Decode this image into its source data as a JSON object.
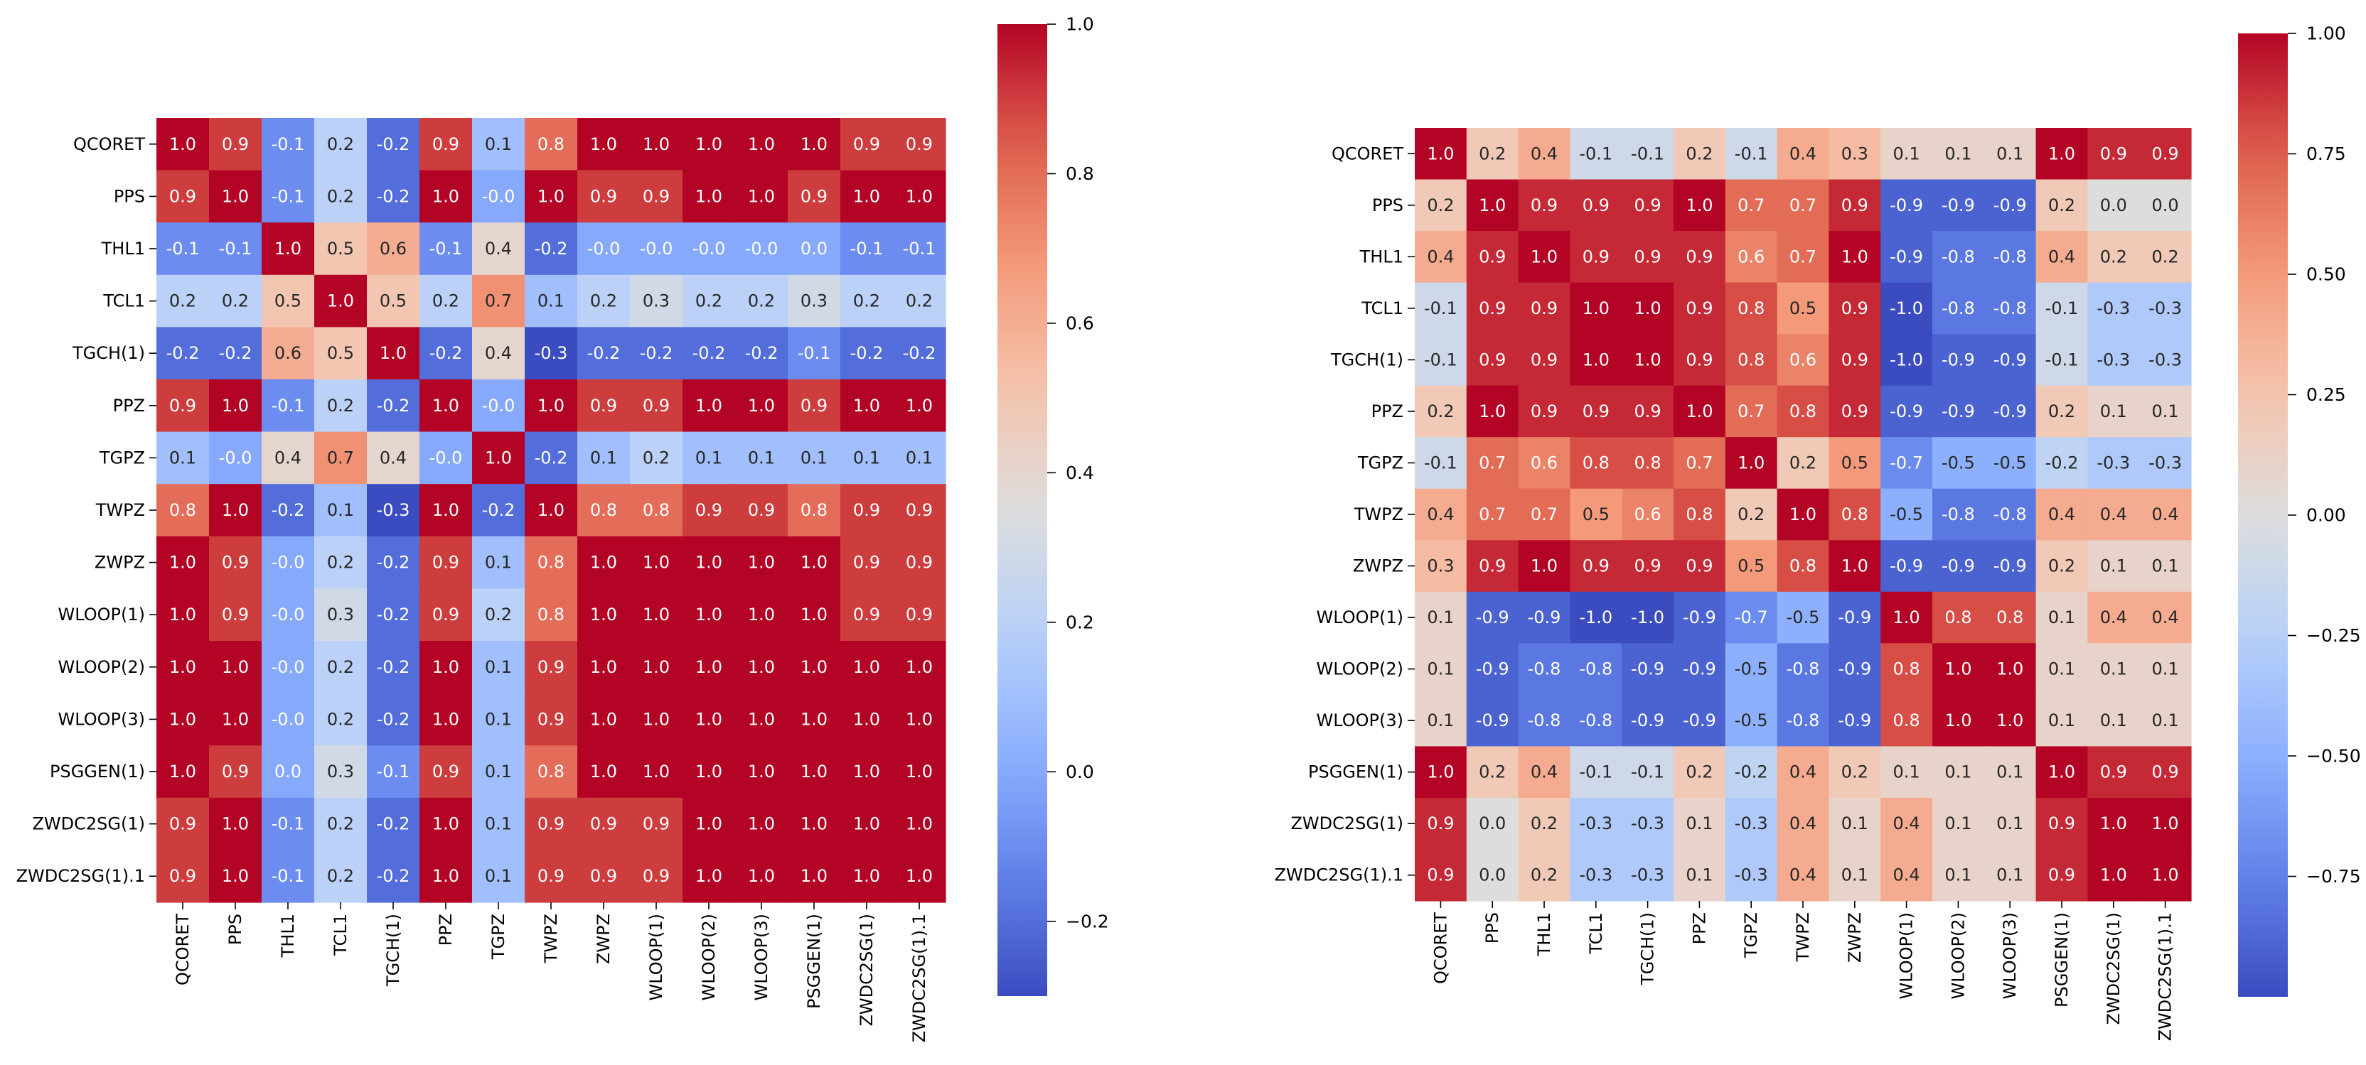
{
  "chart_data": [
    {
      "type": "heatmap",
      "title": "",
      "xlabel": "",
      "ylabel": "",
      "colormap": "coolwarm",
      "vmin": -0.3,
      "vmax": 1.0,
      "value_format": "1 decimal",
      "labels": [
        "QCORET",
        "PPS",
        "THL1",
        "TCL1",
        "TGCH(1)",
        "PPZ",
        "TGPZ",
        "TWPZ",
        "ZWPZ",
        "WLOOP(1)",
        "WLOOP(2)",
        "WLOOP(3)",
        "PSGGEN(1)",
        "ZWDC2SG(1)",
        "ZWDC2SG(1).1"
      ],
      "matrix": [
        [
          1.0,
          0.9,
          -0.1,
          0.2,
          -0.2,
          0.9,
          0.1,
          0.8,
          1.0,
          1.0,
          1.0,
          1.0,
          1.0,
          0.9,
          0.9
        ],
        [
          0.9,
          1.0,
          -0.1,
          0.2,
          -0.2,
          1.0,
          -0.0,
          1.0,
          0.9,
          0.9,
          1.0,
          1.0,
          0.9,
          1.0,
          1.0
        ],
        [
          -0.1,
          -0.1,
          1.0,
          0.5,
          0.6,
          -0.1,
          0.4,
          -0.2,
          -0.0,
          -0.0,
          -0.0,
          -0.0,
          0.0,
          -0.1,
          -0.1
        ],
        [
          0.2,
          0.2,
          0.5,
          1.0,
          0.5,
          0.2,
          0.7,
          0.1,
          0.2,
          0.3,
          0.2,
          0.2,
          0.3,
          0.2,
          0.2
        ],
        [
          -0.2,
          -0.2,
          0.6,
          0.5,
          1.0,
          -0.2,
          0.4,
          -0.3,
          -0.2,
          -0.2,
          -0.2,
          -0.2,
          -0.1,
          -0.2,
          -0.2
        ],
        [
          0.9,
          1.0,
          -0.1,
          0.2,
          -0.2,
          1.0,
          -0.0,
          1.0,
          0.9,
          0.9,
          1.0,
          1.0,
          0.9,
          1.0,
          1.0
        ],
        [
          0.1,
          -0.0,
          0.4,
          0.7,
          0.4,
          -0.0,
          1.0,
          -0.2,
          0.1,
          0.2,
          0.1,
          0.1,
          0.1,
          0.1,
          0.1
        ],
        [
          0.8,
          1.0,
          -0.2,
          0.1,
          -0.3,
          1.0,
          -0.2,
          1.0,
          0.8,
          0.8,
          0.9,
          0.9,
          0.8,
          0.9,
          0.9
        ],
        [
          1.0,
          0.9,
          -0.0,
          0.2,
          -0.2,
          0.9,
          0.1,
          0.8,
          1.0,
          1.0,
          1.0,
          1.0,
          1.0,
          0.9,
          0.9
        ],
        [
          1.0,
          0.9,
          -0.0,
          0.3,
          -0.2,
          0.9,
          0.2,
          0.8,
          1.0,
          1.0,
          1.0,
          1.0,
          1.0,
          0.9,
          0.9
        ],
        [
          1.0,
          1.0,
          -0.0,
          0.2,
          -0.2,
          1.0,
          0.1,
          0.9,
          1.0,
          1.0,
          1.0,
          1.0,
          1.0,
          1.0,
          1.0
        ],
        [
          1.0,
          1.0,
          -0.0,
          0.2,
          -0.2,
          1.0,
          0.1,
          0.9,
          1.0,
          1.0,
          1.0,
          1.0,
          1.0,
          1.0,
          1.0
        ],
        [
          1.0,
          0.9,
          0.0,
          0.3,
          -0.1,
          0.9,
          0.1,
          0.8,
          1.0,
          1.0,
          1.0,
          1.0,
          1.0,
          1.0,
          1.0
        ],
        [
          0.9,
          1.0,
          -0.1,
          0.2,
          -0.2,
          1.0,
          0.1,
          0.9,
          0.9,
          0.9,
          1.0,
          1.0,
          1.0,
          1.0,
          1.0
        ],
        [
          0.9,
          1.0,
          -0.1,
          0.2,
          -0.2,
          1.0,
          0.1,
          0.9,
          0.9,
          0.9,
          1.0,
          1.0,
          1.0,
          1.0,
          1.0
        ]
      ],
      "colorbar": {
        "ticks": [
          1.0,
          0.8,
          0.6,
          0.4,
          0.2,
          0.0,
          -0.2
        ],
        "tick_labels": [
          "1.0",
          "0.8",
          "0.6",
          "0.4",
          "0.2",
          "0.0",
          "−0.2"
        ]
      }
    },
    {
      "type": "heatmap",
      "title": "",
      "xlabel": "",
      "ylabel": "",
      "colormap": "coolwarm",
      "vmin": -1.0,
      "vmax": 1.0,
      "value_format": "1 decimal",
      "labels": [
        "QCORET",
        "PPS",
        "THL1",
        "TCL1",
        "TGCH(1)",
        "PPZ",
        "TGPZ",
        "TWPZ",
        "ZWPZ",
        "WLOOP(1)",
        "WLOOP(2)",
        "WLOOP(3)",
        "PSGGEN(1)",
        "ZWDC2SG(1)",
        "ZWDC2SG(1).1"
      ],
      "matrix": [
        [
          1.0,
          0.2,
          0.4,
          -0.1,
          -0.1,
          0.2,
          -0.1,
          0.4,
          0.3,
          0.1,
          0.1,
          0.1,
          1.0,
          0.9,
          0.9
        ],
        [
          0.2,
          1.0,
          0.9,
          0.9,
          0.9,
          1.0,
          0.7,
          0.7,
          0.9,
          -0.9,
          -0.9,
          -0.9,
          0.2,
          0.0,
          0.0
        ],
        [
          0.4,
          0.9,
          1.0,
          0.9,
          0.9,
          0.9,
          0.6,
          0.7,
          1.0,
          -0.9,
          -0.8,
          -0.8,
          0.4,
          0.2,
          0.2
        ],
        [
          -0.1,
          0.9,
          0.9,
          1.0,
          1.0,
          0.9,
          0.8,
          0.5,
          0.9,
          -1.0,
          -0.8,
          -0.8,
          -0.1,
          -0.3,
          -0.3
        ],
        [
          -0.1,
          0.9,
          0.9,
          1.0,
          1.0,
          0.9,
          0.8,
          0.6,
          0.9,
          -1.0,
          -0.9,
          -0.9,
          -0.1,
          -0.3,
          -0.3
        ],
        [
          0.2,
          1.0,
          0.9,
          0.9,
          0.9,
          1.0,
          0.7,
          0.8,
          0.9,
          -0.9,
          -0.9,
          -0.9,
          0.2,
          0.1,
          0.1
        ],
        [
          -0.1,
          0.7,
          0.6,
          0.8,
          0.8,
          0.7,
          1.0,
          0.2,
          0.5,
          -0.7,
          -0.5,
          -0.5,
          -0.2,
          -0.3,
          -0.3
        ],
        [
          0.4,
          0.7,
          0.7,
          0.5,
          0.6,
          0.8,
          0.2,
          1.0,
          0.8,
          -0.5,
          -0.8,
          -0.8,
          0.4,
          0.4,
          0.4
        ],
        [
          0.3,
          0.9,
          1.0,
          0.9,
          0.9,
          0.9,
          0.5,
          0.8,
          1.0,
          -0.9,
          -0.9,
          -0.9,
          0.2,
          0.1,
          0.1
        ],
        [
          0.1,
          -0.9,
          -0.9,
          -1.0,
          -1.0,
          -0.9,
          -0.7,
          -0.5,
          -0.9,
          1.0,
          0.8,
          0.8,
          0.1,
          0.4,
          0.4
        ],
        [
          0.1,
          -0.9,
          -0.8,
          -0.8,
          -0.9,
          -0.9,
          -0.5,
          -0.8,
          -0.9,
          0.8,
          1.0,
          1.0,
          0.1,
          0.1,
          0.1
        ],
        [
          0.1,
          -0.9,
          -0.8,
          -0.8,
          -0.9,
          -0.9,
          -0.5,
          -0.8,
          -0.9,
          0.8,
          1.0,
          1.0,
          0.1,
          0.1,
          0.1
        ],
        [
          1.0,
          0.2,
          0.4,
          -0.1,
          -0.1,
          0.2,
          -0.2,
          0.4,
          0.2,
          0.1,
          0.1,
          0.1,
          1.0,
          0.9,
          0.9
        ],
        [
          0.9,
          0.0,
          0.2,
          -0.3,
          -0.3,
          0.1,
          -0.3,
          0.4,
          0.1,
          0.4,
          0.1,
          0.1,
          0.9,
          1.0,
          1.0
        ],
        [
          0.9,
          0.0,
          0.2,
          -0.3,
          -0.3,
          0.1,
          -0.3,
          0.4,
          0.1,
          0.4,
          0.1,
          0.1,
          0.9,
          1.0,
          1.0
        ]
      ],
      "colorbar": {
        "ticks": [
          1.0,
          0.75,
          0.5,
          0.25,
          0.0,
          -0.25,
          -0.5,
          -0.75
        ],
        "tick_labels": [
          "1.00",
          "0.75",
          "0.50",
          "0.25",
          "0.00",
          "−0.25",
          "−0.50",
          "−0.75"
        ]
      }
    }
  ]
}
